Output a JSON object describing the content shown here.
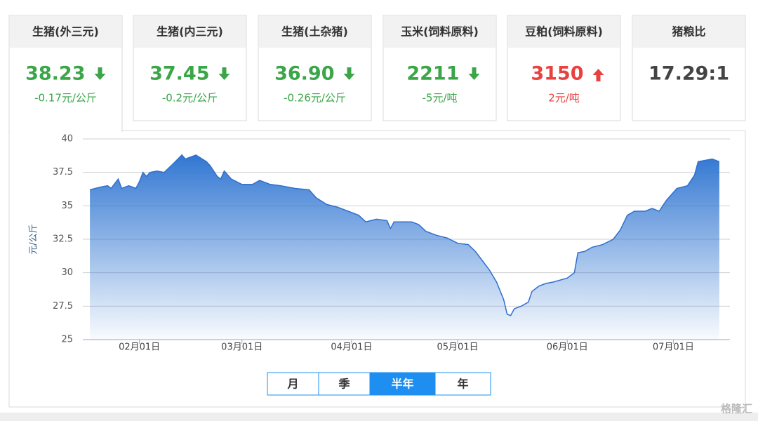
{
  "cards": [
    {
      "name": "生猪(外三元)",
      "value": "38.23",
      "change": "-0.17元/公斤",
      "direction": "down",
      "selected": true
    },
    {
      "name": "生猪(内三元)",
      "value": "37.45",
      "change": "-0.2元/公斤",
      "direction": "down"
    },
    {
      "name": "生猪(土杂猪)",
      "value": "36.90",
      "change": "-0.26元/公斤",
      "direction": "down"
    },
    {
      "name": "玉米(饲料原料)",
      "value": "2211",
      "change": "-5元/吨",
      "direction": "down"
    },
    {
      "name": "豆粕(饲料原料)",
      "value": "3150",
      "change": "2元/吨",
      "direction": "up"
    },
    {
      "name": "猪粮比",
      "value": "17.29:1"
    }
  ],
  "chart_data": {
    "type": "area",
    "ylabel": "元/公斤",
    "color": "#2f6fcf",
    "grid": true,
    "x": [
      "01月18日",
      "01月21日",
      "01月23日",
      "01月24日",
      "01月26日",
      "01月27日",
      "01月29日",
      "01月31日",
      "02月01日",
      "02月02日",
      "02月03日",
      "02月04日",
      "02月06日",
      "02月08日",
      "02月10日",
      "02月13日",
      "02月14日",
      "02月17日",
      "02月20日",
      "02月21日",
      "02月23日",
      "02月24日",
      "02月25日",
      "02月27日",
      "03月01日",
      "03月04日",
      "03月06日",
      "03月09日",
      "03月12日",
      "03月16日",
      "03月20日",
      "03月22日",
      "03月25日",
      "03月28日",
      "03月31日",
      "04月03日",
      "04月05日",
      "04月08日",
      "04月11日",
      "04月12日",
      "04月13日",
      "04月18日",
      "04月20日",
      "04月22日",
      "04月25日",
      "04月28日",
      "05月01日",
      "05月04日",
      "05月06日",
      "05月08日",
      "05月10日",
      "05月12日",
      "05月14日",
      "05月15日",
      "05月16日",
      "05月17日",
      "05月19日",
      "05月21日",
      "05月22日",
      "05月24日",
      "05月26日",
      "05月28日",
      "06月01日",
      "06月03日",
      "06月04日",
      "06月06日",
      "06月08日",
      "06月11日",
      "06月14日",
      "06月16日",
      "06月18日",
      "06月20日",
      "06月23日",
      "06月25日",
      "06月27日",
      "06月29日",
      "07月01日",
      "07月02日",
      "07月05日",
      "07月07日",
      "07月08日",
      "07月10日",
      "07月12日",
      "07月14日"
    ],
    "values": [
      36.2,
      36.4,
      36.5,
      36.3,
      37.0,
      36.3,
      36.5,
      36.3,
      36.8,
      37.5,
      37.2,
      37.5,
      37.6,
      37.5,
      38.0,
      38.8,
      38.5,
      38.8,
      38.3,
      38.0,
      37.2,
      37.0,
      37.6,
      37.0,
      36.6,
      36.6,
      36.9,
      36.6,
      36.5,
      36.3,
      36.2,
      35.6,
      35.1,
      34.9,
      34.6,
      34.3,
      33.8,
      34.0,
      33.9,
      33.3,
      33.8,
      33.8,
      33.6,
      33.1,
      32.8,
      32.6,
      32.2,
      32.1,
      31.6,
      30.9,
      30.2,
      29.3,
      28.0,
      26.9,
      26.8,
      27.3,
      27.5,
      27.8,
      28.6,
      29.0,
      29.2,
      29.3,
      29.6,
      30.0,
      31.5,
      31.6,
      31.9,
      32.1,
      32.5,
      33.2,
      34.3,
      34.6,
      34.6,
      34.8,
      34.6,
      35.4,
      36.0,
      36.3,
      36.5,
      37.3,
      38.3,
      38.4,
      38.5,
      38.3
    ],
    "xlim": [
      "01月16日",
      "07月17日"
    ],
    "xticks": [
      "02月01日",
      "03月01日",
      "04月01日",
      "05月01日",
      "06月01日",
      "07月01日"
    ],
    "ylim": [
      25,
      40
    ],
    "yticks": [
      25,
      27.5,
      30,
      32.5,
      35,
      37.5,
      40
    ]
  },
  "period_tabs": {
    "options": [
      "月",
      "季",
      "半年",
      "年"
    ],
    "selected": 2
  },
  "watermark": "格隆汇"
}
